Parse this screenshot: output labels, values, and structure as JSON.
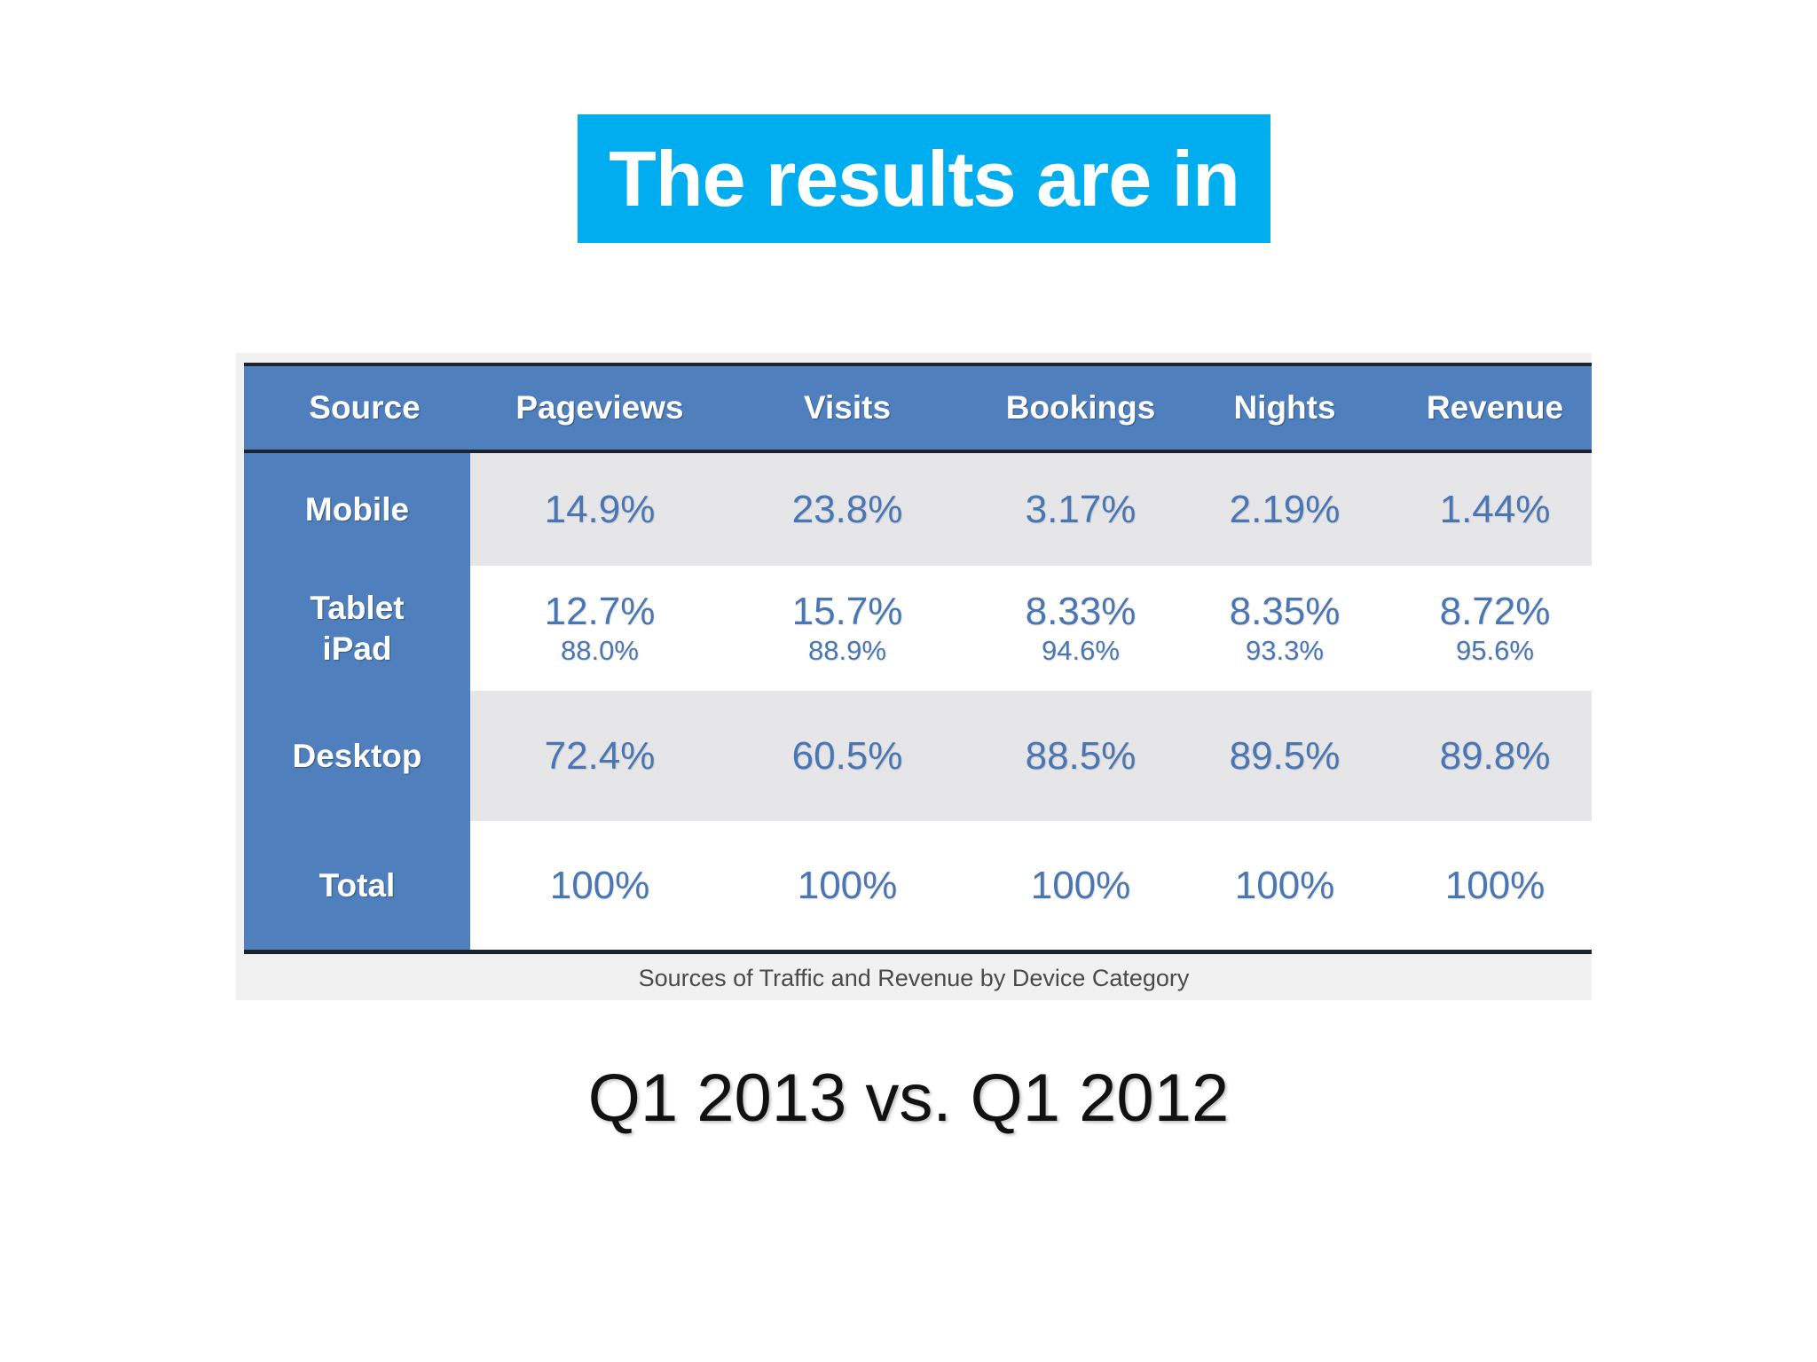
{
  "slide": {
    "title": "The results are in",
    "subtitle": "Q1 2013 vs. Q1 2012",
    "accent_color": "#00adef",
    "table_blue": "#4f80bd"
  },
  "chart_data": {
    "type": "table",
    "caption": "Sources of Traffic and Revenue by Device Category",
    "columns": [
      "Source",
      "Pageviews",
      "Visits",
      "Bookings",
      "Nights",
      "Revenue"
    ],
    "rows": [
      {
        "label": [
          "Mobile"
        ],
        "values": [
          "14.9%",
          "23.8%",
          "3.17%",
          "2.19%",
          "1.44%"
        ],
        "subvalues": [
          "",
          "",
          "",
          "",
          ""
        ]
      },
      {
        "label": [
          "Tablet",
          "iPad"
        ],
        "values": [
          "12.7%",
          "15.7%",
          "8.33%",
          "8.35%",
          "8.72%"
        ],
        "subvalues": [
          "88.0%",
          "88.9%",
          "94.6%",
          "93.3%",
          "95.6%"
        ]
      },
      {
        "label": [
          "Desktop"
        ],
        "values": [
          "72.4%",
          "60.5%",
          "88.5%",
          "89.5%",
          "89.8%"
        ],
        "subvalues": [
          "",
          "",
          "",
          "",
          ""
        ]
      },
      {
        "label": [
          "Total"
        ],
        "values": [
          "100%",
          "100%",
          "100%",
          "100%",
          "100%"
        ],
        "subvalues": [
          "",
          "",
          "",
          "",
          ""
        ]
      }
    ]
  }
}
